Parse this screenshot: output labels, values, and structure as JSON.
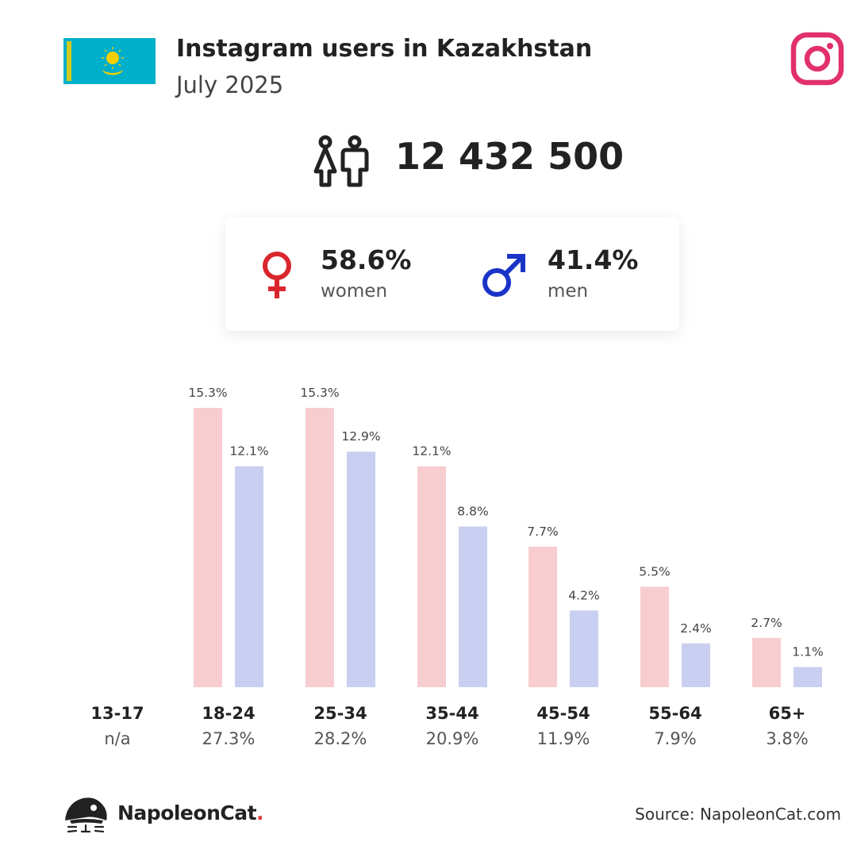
{
  "header": {
    "title": "Instagram users in Kazakhstan",
    "subtitle": "July 2025"
  },
  "total_users": "12 432 500",
  "gender": {
    "women_pct": "58.6%",
    "women_label": "women",
    "men_pct": "41.4%",
    "men_label": "men"
  },
  "colors": {
    "women_bar": "#f7cdcf",
    "men_bar": "#c9cff0",
    "women_symbol": "#d9262d",
    "men_symbol": "#1a34c8",
    "instagram": "#e1306c",
    "flag": "#00afca"
  },
  "icons": {
    "flag": "kazakhstan-flag-icon",
    "platform": "instagram-icon",
    "people": "people-icon",
    "female": "female-symbol-icon",
    "male": "male-symbol-icon",
    "logo": "napoleoncat-logo-icon"
  },
  "chart_data": {
    "type": "bar",
    "categories": [
      "13-17",
      "18-24",
      "25-34",
      "35-44",
      "45-54",
      "55-64",
      "65+"
    ],
    "category_totals": [
      "n/a",
      "27.3%",
      "28.2%",
      "20.9%",
      "11.9%",
      "7.9%",
      "3.8%"
    ],
    "series": [
      {
        "values": [
          null,
          15.3,
          15.3,
          12.1,
          7.7,
          5.5,
          2.7
        ],
        "labels": [
          "",
          "15.3%",
          "15.3%",
          "12.1%",
          "7.7%",
          "5.5%",
          "2.7%"
        ]
      },
      {
        "values": [
          null,
          12.1,
          12.9,
          8.8,
          4.2,
          2.4,
          1.1
        ],
        "labels": [
          "",
          "12.1%",
          "12.9%",
          "8.8%",
          "4.2%",
          "2.4%",
          "1.1%"
        ]
      }
    ],
    "ylim": [
      0,
      15.3
    ],
    "grid": false,
    "legend": "none"
  },
  "footer": {
    "brand_name": "NapoleonCat",
    "brand_dot": ".",
    "source": "Source: NapoleonCat.com"
  }
}
